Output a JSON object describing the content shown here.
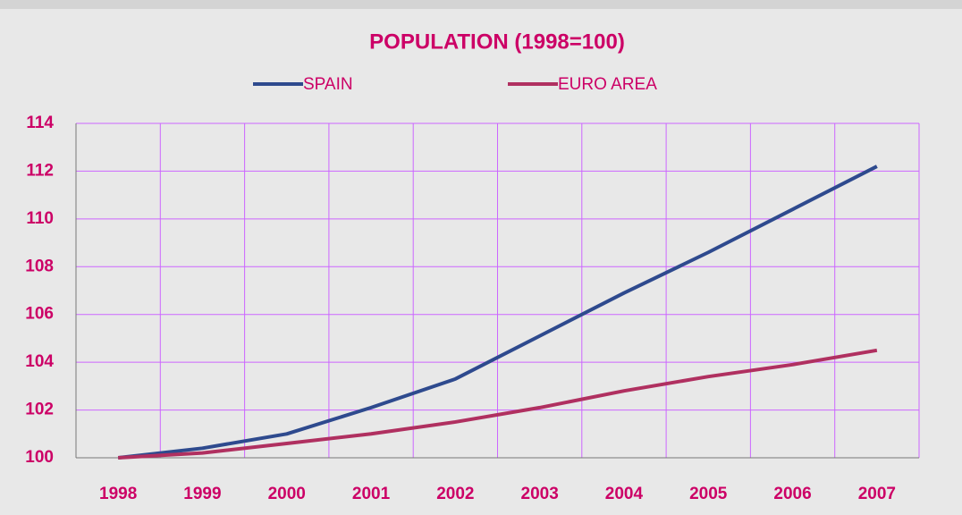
{
  "chart_data": {
    "type": "line",
    "title": "POPULATION (1998=100)",
    "categories": [
      "1998",
      "1999",
      "2000",
      "2001",
      "2002",
      "2003",
      "2004",
      "2005",
      "2006",
      "2007"
    ],
    "series": [
      {
        "name": "SPAIN",
        "color": "#2e4a8e",
        "values": [
          100,
          100.4,
          101.0,
          102.1,
          103.3,
          105.1,
          106.9,
          108.6,
          110.4,
          112.2
        ]
      },
      {
        "name": "EURO AREA",
        "color": "#b03060",
        "values": [
          100,
          100.2,
          100.6,
          101.0,
          101.5,
          102.1,
          102.8,
          103.4,
          103.9,
          104.5
        ]
      }
    ],
    "ylim": [
      100,
      114
    ],
    "yticks": [
      100,
      102,
      104,
      106,
      108,
      110,
      112,
      114
    ],
    "grid": true,
    "legend": "top"
  }
}
